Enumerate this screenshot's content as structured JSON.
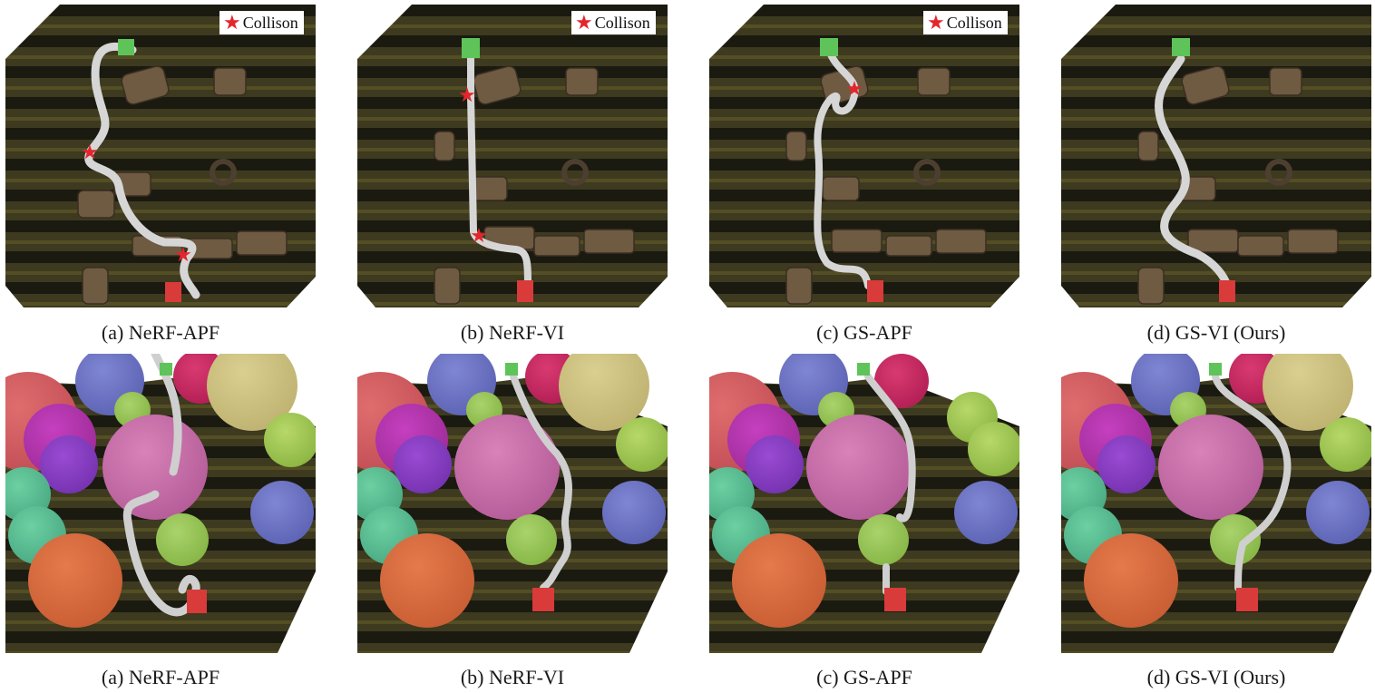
{
  "legend": {
    "label": "Collison",
    "star_color": "#e3262d"
  },
  "rows": [
    {
      "captions": [
        "(a) NeRF-APF",
        "(b) NeRF-VI",
        "(c) GS-APF",
        "(d) GS-VI (Ours)"
      ]
    },
    {
      "captions": [
        "(a) NeRF-APF",
        "(b) NeRF-VI",
        "(c) GS-APF",
        "(d) GS-VI (Ours)"
      ]
    }
  ],
  "colors": {
    "path": "#d6d6d6",
    "start_marker": "#5ec45a",
    "goal_marker": "#d93a3a",
    "ground": "#3c3a22",
    "collision_star": "#e3262d"
  }
}
